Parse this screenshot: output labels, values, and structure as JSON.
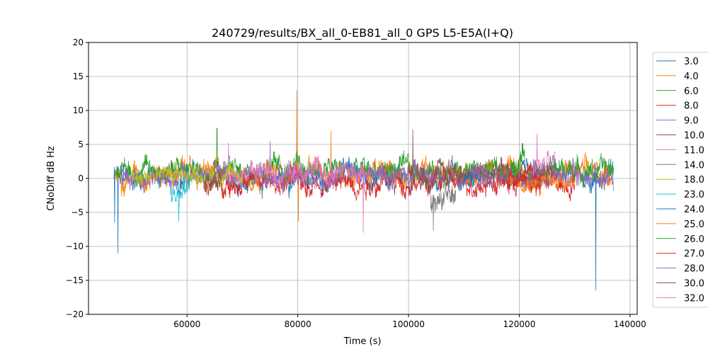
{
  "chart_data": {
    "type": "line",
    "title": "240729/results/BX_all_0-EB81_all_0 GPS L5-E5A(I+Q)",
    "xlabel": "Time (s)",
    "ylabel": "CNoDiff dB Hz",
    "xlim": [
      42200,
      141300
    ],
    "ylim": [
      -20,
      20
    ],
    "xticks": [
      60000,
      80000,
      100000,
      120000,
      140000
    ],
    "yticks": [
      -20,
      -15,
      -10,
      -5,
      0,
      5,
      10,
      15,
      20
    ],
    "grid": true,
    "legend_placement": "right-outside",
    "series": [
      {
        "name": "3.0",
        "color": "#1f77b4",
        "start": 46800,
        "end": 137000,
        "mean": 0.2,
        "spread": 1.4,
        "spikes": [
          [
            47500,
            -11
          ],
          [
            133800,
            -16.5
          ],
          [
            46900,
            -6.5
          ]
        ]
      },
      {
        "name": "4.0",
        "color": "#ff7f0e",
        "start": 47000,
        "end": 136500,
        "mean": 0.8,
        "spread": 1.4,
        "spikes": [
          [
            79800,
            13
          ],
          [
            80100,
            -6.3
          ],
          [
            86000,
            7
          ]
        ]
      },
      {
        "name": "6.0",
        "color": "#2ca02c",
        "start": 47200,
        "end": 137000,
        "mean": 1.2,
        "spread": 1.3,
        "spikes": [
          [
            65400,
            7.4
          ]
        ]
      },
      {
        "name": "8.0",
        "color": "#d62728",
        "start": 63000,
        "end": 130000,
        "mean": -0.6,
        "spread": 1.3,
        "spikes": []
      },
      {
        "name": "9.0",
        "color": "#9467bd",
        "start": 48000,
        "end": 137000,
        "mean": 0.3,
        "spread": 1.2,
        "spikes": [
          [
            75000,
            5.5
          ]
        ]
      },
      {
        "name": "10.0",
        "color": "#8c564b",
        "start": 100000,
        "end": 126000,
        "mean": 0.8,
        "spread": 1.3,
        "spikes": [
          [
            100800,
            7.2
          ]
        ]
      },
      {
        "name": "11.0",
        "color": "#e377c2",
        "start": 67000,
        "end": 92000,
        "mean": 0.8,
        "spread": 1.2,
        "spikes": [
          [
            91800,
            -8
          ],
          [
            67500,
            5.3
          ]
        ]
      },
      {
        "name": "14.0",
        "color": "#7f7f7f",
        "start": 104000,
        "end": 108500,
        "mean": -3,
        "spread": 1.5,
        "spikes": [
          [
            104500,
            -7.7
          ]
        ]
      },
      {
        "name": "18.0",
        "color": "#bcbd22",
        "start": 50000,
        "end": 70000,
        "mean": 0.6,
        "spread": 1.0,
        "spikes": []
      },
      {
        "name": "23.0",
        "color": "#17becf",
        "start": 57000,
        "end": 60500,
        "mean": -1.8,
        "spread": 1.5,
        "spikes": [
          [
            58500,
            -6.3
          ]
        ]
      },
      {
        "name": "24.0",
        "color": "#1f77b4",
        "start": 110000,
        "end": 113000,
        "mean": 0.3,
        "spread": 0.8,
        "spikes": []
      },
      {
        "name": "25.0",
        "color": "#ff7f0e",
        "start": 118000,
        "end": 130000,
        "mean": -0.3,
        "spread": 0.8,
        "spikes": []
      },
      {
        "name": "26.0",
        "color": "#2ca02c",
        "start": 118500,
        "end": 121000,
        "mean": 2,
        "spread": 1.5,
        "spikes": []
      },
      {
        "name": "27.0",
        "color": "#d62728",
        "start": 118000,
        "end": 124000,
        "mean": 0.2,
        "spread": 1,
        "spikes": []
      },
      {
        "name": "28.0",
        "color": "#9467bd",
        "start": 111500,
        "end": 114000,
        "mean": 1.5,
        "spread": 1.2,
        "spikes": []
      },
      {
        "name": "30.0",
        "color": "#8c564b",
        "start": 63000,
        "end": 66000,
        "mean": -1,
        "spread": 1.2,
        "spikes": []
      },
      {
        "name": "32.0",
        "color": "#e377c2",
        "start": 122500,
        "end": 126500,
        "mean": 2,
        "spread": 1.5,
        "spikes": [
          [
            123200,
            6.6
          ]
        ]
      }
    ]
  }
}
